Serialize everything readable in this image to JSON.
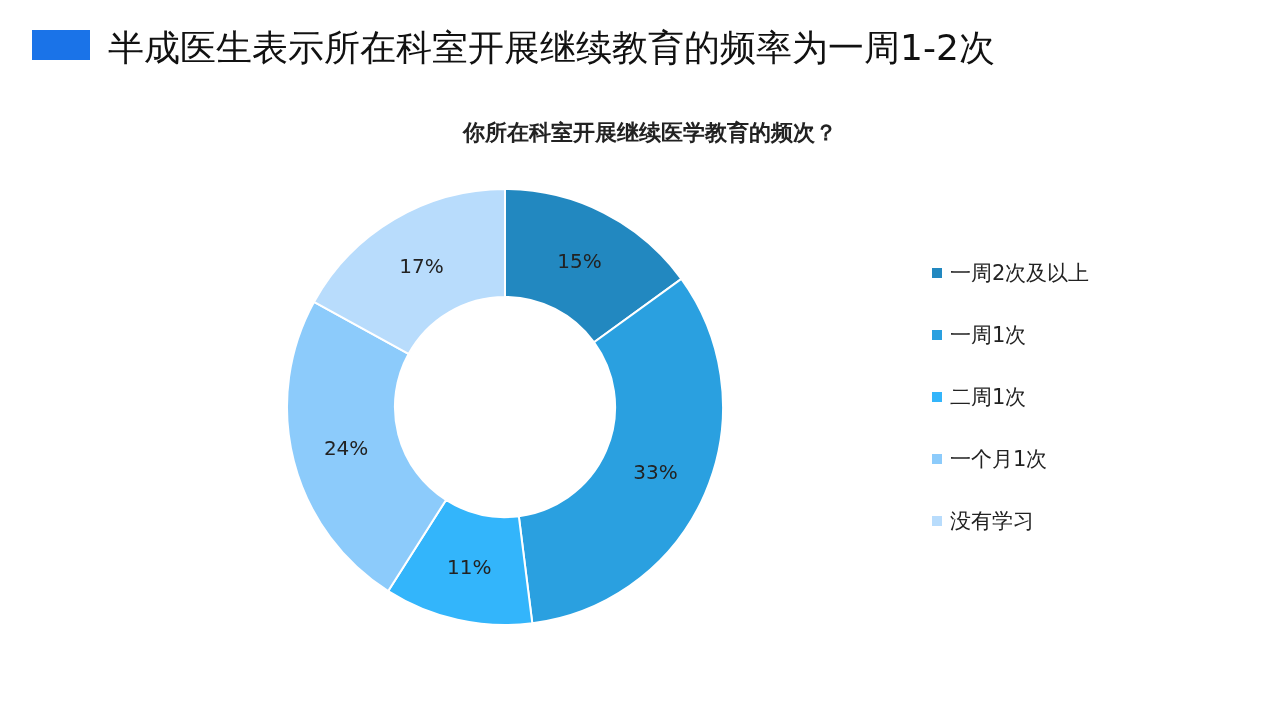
{
  "chart_data": {
    "type": "donut",
    "title": "半成医生表示所在科室开展继续教育的频率为一周1-2次",
    "subtitle": "你所在科室开展继续医学教育的频次？",
    "categories": [
      "一周2次及以上",
      "一周1次",
      "二周1次",
      "一个月1次",
      "没有学习"
    ],
    "values": [
      15,
      33,
      11,
      24,
      17
    ],
    "colors": [
      "#2288c0",
      "#2aa0e0",
      "#33b5fb",
      "#8ccbfb",
      "#b8dcfc"
    ],
    "value_labels": [
      "15%",
      "33%",
      "11%",
      "24%",
      "17%"
    ],
    "legend": "right"
  }
}
